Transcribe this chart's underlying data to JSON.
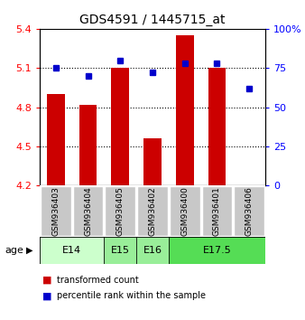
{
  "title": "GDS4591 / 1445715_at",
  "samples": [
    "GSM936403",
    "GSM936404",
    "GSM936405",
    "GSM936402",
    "GSM936400",
    "GSM936401",
    "GSM936406"
  ],
  "bar_values": [
    4.9,
    4.82,
    5.1,
    4.56,
    5.35,
    5.1,
    4.2
  ],
  "percentile_values": [
    75,
    70,
    80,
    72,
    78,
    78,
    62
  ],
  "ylim_left": [
    4.2,
    5.4
  ],
  "ylim_right": [
    0,
    100
  ],
  "yticks_left": [
    4.2,
    4.5,
    4.8,
    5.1,
    5.4
  ],
  "yticks_right": [
    0,
    25,
    50,
    75,
    100
  ],
  "bar_color": "#cc0000",
  "dot_color": "#0000cc",
  "bar_bottom": 4.2,
  "age_groups": [
    {
      "label": "E14",
      "span": [
        0,
        2
      ],
      "color": "#ccffcc"
    },
    {
      "label": "E15",
      "span": [
        2,
        3
      ],
      "color": "#99ee99"
    },
    {
      "label": "E16",
      "span": [
        3,
        4
      ],
      "color": "#99ee99"
    },
    {
      "label": "E17.5",
      "span": [
        4,
        7
      ],
      "color": "#55dd55"
    }
  ],
  "age_label": "age",
  "legend_bar_label": "transformed count",
  "legend_dot_label": "percentile rank within the sample",
  "grid_dotted_ticks": [
    4.5,
    4.8,
    5.1
  ],
  "sample_box_color": "#c8c8c8"
}
